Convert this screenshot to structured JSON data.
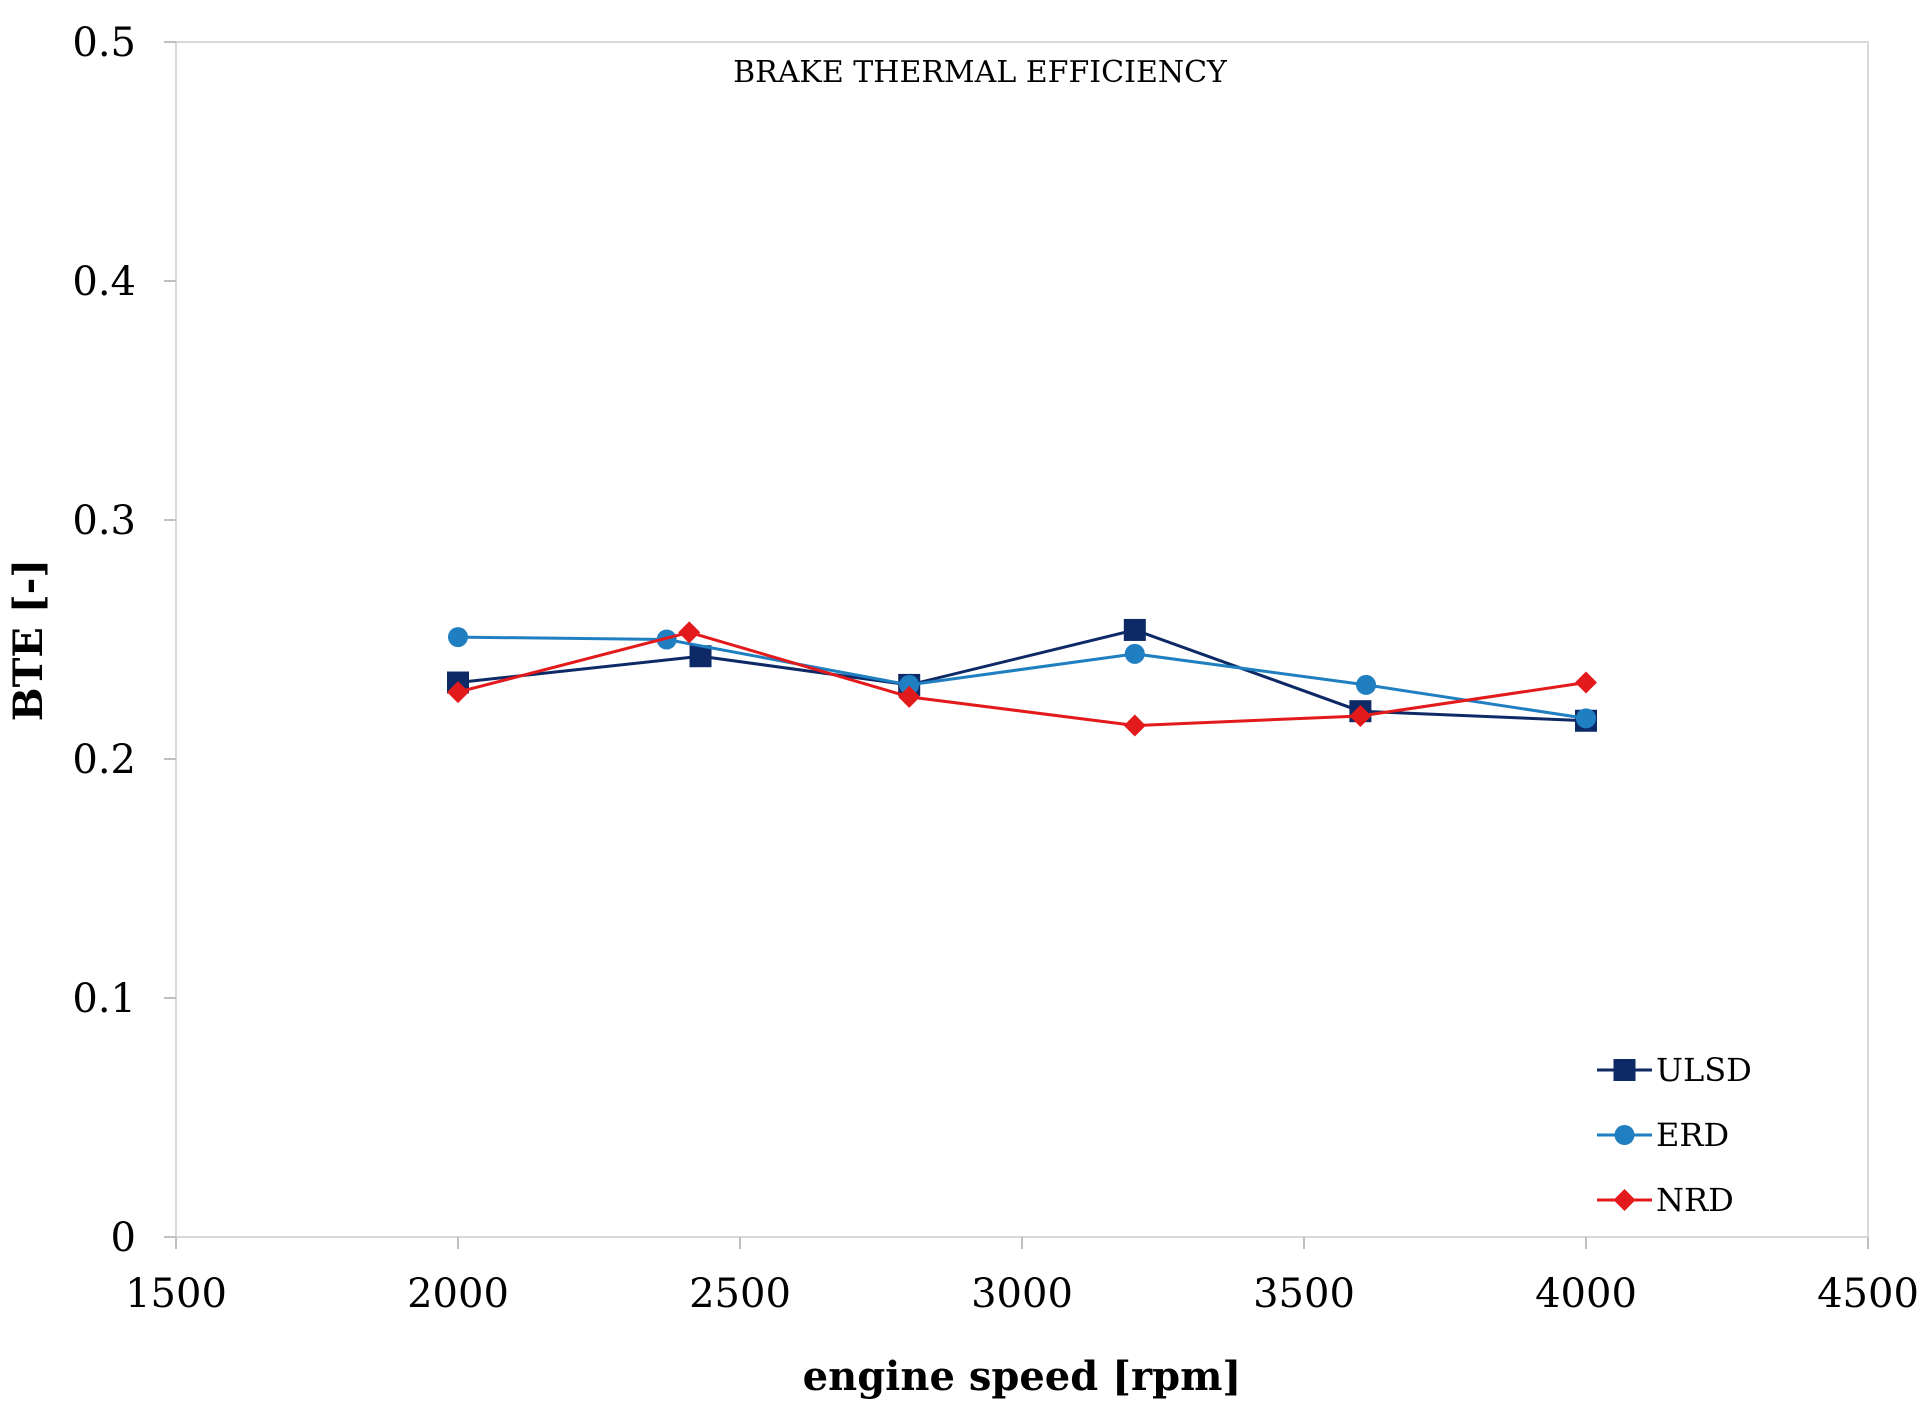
{
  "chart_data": {
    "type": "line",
    "title": "BRAKE THERMAL EFFICIENCY",
    "xlabel": "engine speed [rpm]",
    "ylabel": "BTE [-]",
    "xlim": [
      1500,
      4500
    ],
    "ylim": [
      0,
      0.5
    ],
    "x_ticks": [
      "1500",
      "2000",
      "2500",
      "3000",
      "3500",
      "4000",
      "4500"
    ],
    "y_ticks": [
      "0",
      "0.1",
      "0.2",
      "0.3",
      "0.4",
      "0.5"
    ],
    "grid": false,
    "legend_position": "bottom-right",
    "series": [
      {
        "name": "ULSD",
        "color": "#0d2a66",
        "marker": "square",
        "x": [
          2000,
          2430,
          2800,
          3200,
          3600,
          4000
        ],
        "y": [
          0.232,
          0.243,
          0.231,
          0.254,
          0.22,
          0.216
        ]
      },
      {
        "name": "ERD",
        "color": "#1f7fc0",
        "marker": "circle",
        "x": [
          2000,
          2370,
          2800,
          3200,
          3610,
          4000
        ],
        "y": [
          0.251,
          0.25,
          0.231,
          0.244,
          0.231,
          0.217
        ]
      },
      {
        "name": "NRD",
        "color": "#e31a1c",
        "marker": "diamond",
        "x": [
          2000,
          2410,
          2800,
          3200,
          3600,
          4000
        ],
        "y": [
          0.228,
          0.253,
          0.226,
          0.214,
          0.218,
          0.232
        ]
      }
    ]
  }
}
